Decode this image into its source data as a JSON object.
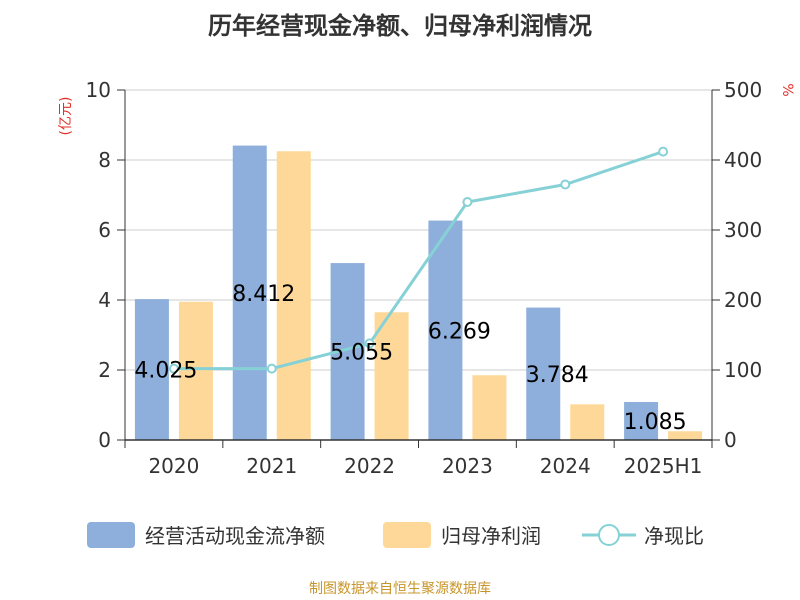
{
  "chart_data": {
    "type": "bar",
    "title": "历年经营现金净额、归母净利润情况",
    "categories": [
      "2020",
      "2021",
      "2022",
      "2023",
      "2024",
      "2025H1"
    ],
    "series": [
      {
        "name": "经营活动现金流净额",
        "type": "bar",
        "axis": "left",
        "color": "#8eafdc",
        "values": [
          4.025,
          8.412,
          5.055,
          6.269,
          3.784,
          1.085
        ]
      },
      {
        "name": "归母净利润",
        "type": "bar",
        "axis": "left",
        "color": "#fdd898",
        "values": [
          3.95,
          8.25,
          3.65,
          1.85,
          1.02,
          0.25
        ]
      },
      {
        "name": "净现比",
        "type": "line",
        "axis": "right",
        "color": "#86d1d6",
        "values": [
          102,
          102,
          138,
          340,
          365,
          412
        ]
      }
    ],
    "data_labels": [
      "4.025",
      "8.412",
      "5.055",
      "6.269",
      "3.784",
      "1.085"
    ],
    "ylabel_left": "(亿元)",
    "ylabel_right": "%",
    "ylim_left": [
      0,
      10
    ],
    "ylim_right": [
      0,
      500
    ],
    "yticks_left": [
      "0",
      "2",
      "4",
      "6",
      "8",
      "10"
    ],
    "yticks_right": [
      "0",
      "100",
      "200",
      "300",
      "400",
      "500"
    ],
    "grid": true,
    "legend_position": "bottom",
    "source": "制图数据来自恒生聚源数据库"
  }
}
